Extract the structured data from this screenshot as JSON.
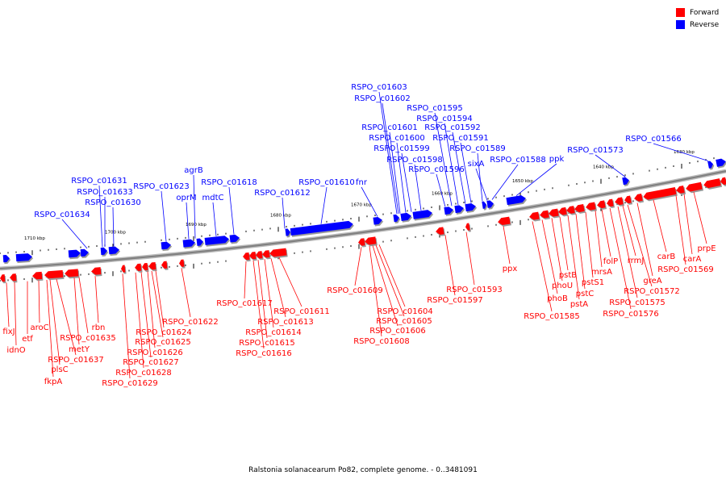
{
  "caption": "Ralstonia solanacearum Po82, complete genome. - 0..3481091",
  "legend": [
    {
      "label": "Forward",
      "color": "#ff0000"
    },
    {
      "label": "Reverse",
      "color": "#0000ff"
    }
  ],
  "colors": {
    "forward": "#ff0000",
    "reverse": "#0000ff",
    "backbone": "#808080"
  },
  "ticks": [
    "1710 kbp",
    "1700 kbp",
    "1690 kbp",
    "1680 kbp",
    "1670 kbp",
    "1660 kbp",
    "1650 kbp",
    "1640 kbp",
    "1630 kbp"
  ],
  "forward_genes": [
    "fixJ",
    "idnO",
    "etf",
    "aroC",
    "plsC",
    "RSPO_c01637",
    "fkpA",
    "metY",
    "RSPO_c01635",
    "rbn",
    "RSPO_c01629",
    "RSPO_c01628",
    "RSPO_c01627",
    "RSPO_c01626",
    "RSPO_c01625",
    "RSPO_c01624",
    "RSPO_c01622",
    "RSPO_c01617",
    "RSPO_c01616",
    "RSPO_c01615",
    "RSPO_c01614",
    "RSPO_c01613",
    "RSPO_c01611",
    "RSPO_c01609",
    "RSPO_c01608",
    "RSPO_c01606",
    "RSPO_c01605",
    "RSPO_c01604",
    "RSPO_c01597",
    "RSPO_c01593",
    "ppx",
    "RSPO_c01585",
    "phoB",
    "phoU",
    "pstB",
    "pstA",
    "pstC",
    "pstS1",
    "mrsA",
    "folP",
    "RSPO_c01576",
    "RSPO_c01575",
    "rrmJ",
    "RSPO_c01572",
    "greA",
    "carB",
    "RSPO_c01569",
    "carA",
    "prpE"
  ],
  "reverse_genes": [
    "RSPO_c01634",
    "RSPO_c01631",
    "RSPO_c01633",
    "RSPO_c01630",
    "RSPO_c01623",
    "agrB",
    "oprM",
    "mdtC",
    "RSPO_c01618",
    "RSPO_c01612",
    "RSPO_c01610",
    "fnr",
    "RSPO_c01603",
    "RSPO_c01602",
    "RSPO_c01601",
    "RSPO_c01600",
    "RSPO_c01599",
    "RSPO_c01598",
    "RSPO_c01596",
    "RSPO_c01595",
    "RSPO_c01594",
    "RSPO_c01592",
    "RSPO_c01591",
    "RSPO_c01589",
    "sixA",
    "RSPO_c01588",
    "ppk",
    "RSPO_c01573",
    "RSPO_c01566"
  ]
}
